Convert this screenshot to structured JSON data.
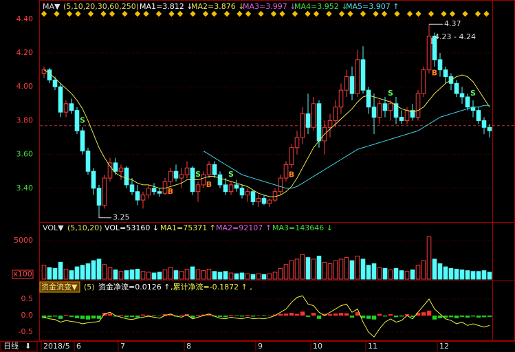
{
  "header": {
    "ma_title": "MA▼",
    "ma_periods": "(5,10,20,30,60,250)",
    "ma1": "MA1=3.812 ↓",
    "ma2": "MA2=3.876 ↓",
    "ma3": "MA3=3.997 ↓",
    "ma4": "MA4=3.952 ↓",
    "ma5": "MA5=3.907 ↑"
  },
  "chart_data": {
    "type": "candlestick",
    "categories": [
      "2018/5",
      null,
      null,
      null,
      null,
      null,
      "6",
      null,
      null,
      null,
      null,
      null,
      null,
      null,
      "7",
      null,
      null,
      null,
      null,
      null,
      null,
      null,
      null,
      null,
      null,
      null,
      "8",
      null,
      null,
      null,
      null,
      null,
      null,
      null,
      null,
      null,
      null,
      null,
      null,
      "9",
      null,
      null,
      null,
      null,
      null,
      null,
      null,
      null,
      null,
      "10",
      null,
      null,
      null,
      null,
      null,
      null,
      null,
      null,
      null,
      "11",
      null,
      null,
      null,
      null,
      null,
      null,
      null,
      null,
      null,
      null,
      null,
      null,
      "12",
      null,
      null,
      null,
      null,
      null,
      null,
      null,
      null,
      null
    ],
    "candles": [
      [
        4.08,
        4.12,
        4.05,
        4.1
      ],
      [
        4.1,
        4.11,
        4.02,
        4.04
      ],
      [
        4.04,
        4.06,
        3.98,
        4.0
      ],
      [
        4.0,
        4.02,
        3.82,
        3.85
      ],
      [
        3.85,
        3.92,
        3.82,
        3.9
      ],
      [
        3.9,
        3.93,
        3.84,
        3.86
      ],
      [
        3.86,
        3.88,
        3.72,
        3.74
      ],
      [
        3.74,
        3.76,
        3.6,
        3.62
      ],
      [
        3.62,
        3.64,
        3.48,
        3.5
      ],
      [
        3.5,
        3.52,
        3.36,
        3.4
      ],
      [
        3.4,
        3.42,
        3.25,
        3.3
      ],
      [
        3.3,
        3.48,
        3.28,
        3.46
      ],
      [
        3.46,
        3.58,
        3.44,
        3.55
      ],
      [
        3.55,
        3.58,
        3.48,
        3.5
      ],
      [
        3.5,
        3.54,
        3.45,
        3.52
      ],
      [
        3.52,
        3.53,
        3.4,
        3.42
      ],
      [
        3.42,
        3.46,
        3.36,
        3.38
      ],
      [
        3.38,
        3.42,
        3.3,
        3.33
      ],
      [
        3.33,
        3.38,
        3.28,
        3.36
      ],
      [
        3.36,
        3.42,
        3.34,
        3.4
      ],
      [
        3.4,
        3.43,
        3.36,
        3.38
      ],
      [
        3.38,
        3.4,
        3.35,
        3.37
      ],
      [
        3.37,
        3.46,
        3.36,
        3.44
      ],
      [
        3.44,
        3.52,
        3.42,
        3.5
      ],
      [
        3.5,
        3.54,
        3.44,
        3.46
      ],
      [
        3.46,
        3.52,
        3.4,
        3.48
      ],
      [
        3.48,
        3.56,
        3.46,
        3.52
      ],
      [
        3.52,
        3.53,
        3.36,
        3.38
      ],
      [
        3.38,
        3.44,
        3.32,
        3.42
      ],
      [
        3.42,
        3.5,
        3.4,
        3.48
      ],
      [
        3.48,
        3.56,
        3.46,
        3.54
      ],
      [
        3.54,
        3.56,
        3.46,
        3.48
      ],
      [
        3.48,
        3.5,
        3.4,
        3.42
      ],
      [
        3.42,
        3.46,
        3.36,
        3.38
      ],
      [
        3.38,
        3.44,
        3.36,
        3.42
      ],
      [
        3.42,
        3.45,
        3.38,
        3.4
      ],
      [
        3.4,
        3.42,
        3.34,
        3.36
      ],
      [
        3.36,
        3.4,
        3.32,
        3.38
      ],
      [
        3.38,
        3.39,
        3.3,
        3.32
      ],
      [
        3.32,
        3.36,
        3.29,
        3.34
      ],
      [
        3.34,
        3.36,
        3.3,
        3.31
      ],
      [
        3.31,
        3.34,
        3.29,
        3.33
      ],
      [
        3.33,
        3.4,
        3.32,
        3.38
      ],
      [
        3.38,
        3.48,
        3.36,
        3.46
      ],
      [
        3.46,
        3.56,
        3.44,
        3.54
      ],
      [
        3.54,
        3.66,
        3.52,
        3.64
      ],
      [
        3.64,
        3.74,
        3.6,
        3.7
      ],
      [
        3.7,
        3.88,
        3.66,
        3.84
      ],
      [
        3.84,
        3.96,
        3.72,
        3.76
      ],
      [
        3.76,
        3.94,
        3.74,
        3.9
      ],
      [
        3.9,
        3.92,
        3.64,
        3.68
      ],
      [
        3.68,
        3.8,
        3.6,
        3.76
      ],
      [
        3.76,
        3.84,
        3.7,
        3.8
      ],
      [
        3.8,
        3.92,
        3.76,
        3.88
      ],
      [
        3.88,
        4.02,
        3.84,
        3.98
      ],
      [
        3.98,
        4.1,
        3.94,
        4.06
      ],
      [
        4.06,
        4.12,
        3.92,
        3.96
      ],
      [
        3.96,
        4.22,
        3.94,
        4.16
      ],
      [
        4.16,
        4.24,
        3.96,
        3.98
      ],
      [
        3.98,
        4.0,
        3.84,
        3.88
      ],
      [
        3.88,
        3.96,
        3.72,
        3.82
      ],
      [
        3.82,
        3.92,
        3.78,
        3.9
      ],
      [
        3.9,
        3.94,
        3.82,
        3.86
      ],
      [
        3.86,
        3.92,
        3.8,
        3.9
      ],
      [
        3.9,
        3.94,
        3.78,
        3.82
      ],
      [
        3.82,
        3.86,
        3.78,
        3.8
      ],
      [
        3.8,
        3.88,
        3.78,
        3.86
      ],
      [
        3.86,
        3.9,
        3.8,
        3.82
      ],
      [
        3.82,
        3.98,
        3.8,
        3.96
      ],
      [
        3.96,
        4.12,
        3.94,
        4.1
      ],
      [
        4.1,
        4.37,
        4.08,
        4.3
      ],
      [
        4.3,
        4.32,
        4.12,
        4.16
      ],
      [
        4.16,
        4.2,
        4.06,
        4.1
      ],
      [
        4.1,
        4.12,
        4.02,
        4.06
      ],
      [
        4.06,
        4.08,
        3.98,
        4.02
      ],
      [
        4.02,
        4.04,
        3.94,
        3.96
      ],
      [
        3.96,
        4.0,
        3.9,
        3.94
      ],
      [
        3.94,
        3.96,
        3.86,
        3.88
      ],
      [
        3.88,
        3.92,
        3.82,
        3.86
      ],
      [
        3.86,
        3.88,
        3.78,
        3.8
      ],
      [
        3.8,
        3.82,
        3.72,
        3.76
      ],
      [
        3.76,
        3.78,
        3.7,
        3.74
      ]
    ],
    "up_color": "#ff3c3c",
    "down_color": "#54fcfc",
    "prev_close": 3.77,
    "ma_lines": [
      {
        "name": "MA10",
        "color": "#e8e84a",
        "values": [
          4.1,
          4.08,
          4.05,
          4.02,
          3.99,
          3.96,
          3.92,
          3.87,
          3.8,
          3.72,
          3.64,
          3.58,
          3.53,
          3.49,
          3.47,
          3.46,
          3.45,
          3.43,
          3.42,
          3.42,
          3.41,
          3.4,
          3.4,
          3.41,
          3.42,
          3.43,
          3.45,
          3.45,
          3.45,
          3.46,
          3.47,
          3.47,
          3.46,
          3.45,
          3.44,
          3.43,
          3.42,
          3.41,
          3.39,
          3.37,
          3.36,
          3.35,
          3.35,
          3.36,
          3.38,
          3.41,
          3.46,
          3.52,
          3.58,
          3.64,
          3.68,
          3.72,
          3.75,
          3.78,
          3.81,
          3.84,
          3.87,
          3.91,
          3.94,
          3.95,
          3.94,
          3.93,
          3.92,
          3.91,
          3.89,
          3.87,
          3.86,
          3.85,
          3.86,
          3.88,
          3.92,
          3.96,
          3.99,
          4.02,
          4.04,
          4.06,
          4.07,
          4.06,
          4.03,
          3.98,
          3.93,
          3.88
        ]
      },
      {
        "name": "MA60",
        "color": "#3fd6e6",
        "values": [
          null,
          null,
          null,
          null,
          null,
          null,
          null,
          null,
          null,
          null,
          null,
          null,
          null,
          null,
          null,
          null,
          null,
          null,
          null,
          null,
          null,
          null,
          null,
          null,
          null,
          null,
          null,
          null,
          null,
          3.62,
          3.6,
          3.58,
          3.56,
          3.54,
          3.52,
          3.5,
          3.48,
          3.47,
          3.46,
          3.45,
          3.44,
          3.43,
          3.42,
          3.41,
          3.4,
          3.4,
          3.41,
          3.43,
          3.45,
          3.47,
          3.49,
          3.51,
          3.53,
          3.55,
          3.57,
          3.59,
          3.61,
          3.63,
          3.64,
          3.65,
          3.66,
          3.67,
          3.68,
          3.69,
          3.7,
          3.71,
          3.72,
          3.73,
          3.74,
          3.76,
          3.78,
          3.8,
          3.82,
          3.83,
          3.84,
          3.85,
          3.86,
          3.87,
          3.88,
          3.88,
          3.89,
          3.89
        ]
      }
    ],
    "signals": [
      null,
      null,
      null,
      null,
      null,
      null,
      null,
      "S",
      null,
      null,
      null,
      null,
      null,
      null,
      null,
      null,
      null,
      null,
      null,
      null,
      null,
      null,
      null,
      "B",
      null,
      null,
      null,
      null,
      "S",
      null,
      "B",
      null,
      null,
      null,
      "S",
      null,
      null,
      null,
      null,
      null,
      null,
      null,
      null,
      null,
      null,
      "B",
      null,
      null,
      null,
      null,
      null,
      null,
      null,
      null,
      null,
      null,
      null,
      null,
      null,
      null,
      null,
      null,
      null,
      "S",
      null,
      null,
      null,
      null,
      null,
      null,
      null,
      "B",
      null,
      null,
      null,
      null,
      null,
      null,
      "S",
      null,
      null,
      null
    ],
    "high_label": "4.37",
    "low_label": "3.25",
    "range_label": "4.23 - 4.24",
    "ylim": [
      3.2,
      4.44
    ],
    "yticks": [
      {
        "value": 3.4,
        "label": "3.40"
      },
      {
        "value": 3.6,
        "label": "3.60"
      },
      {
        "value": 3.8,
        "label": "3.80"
      },
      {
        "value": 4.0,
        "label": "4.00"
      },
      {
        "value": 4.2,
        "label": "4.20"
      },
      {
        "value": 4.4,
        "label": "4.40"
      }
    ],
    "period_label": "日线"
  },
  "volume": {
    "title": "VOL▼",
    "periods": "(5,10,20)",
    "vol": "VOL=53160 ↓",
    "ma1": "MA1=75371 ↑",
    "ma2": "MA2=92107 ↑",
    "ma3": "MA3=143646 ↓",
    "unit": "x100",
    "values": [
      1800,
      1500,
      1400,
      2200,
      1300,
      1100,
      1600,
      1800,
      2000,
      2400,
      2600,
      1900,
      1500,
      1200,
      1000,
      1100,
      1200,
      1300,
      1000,
      900,
      800,
      900,
      1200,
      1500,
      1100,
      1000,
      1300,
      1600,
      1200,
      1100,
      1300,
      1000,
      900,
      1000,
      800,
      700,
      800,
      700,
      600,
      700,
      600,
      700,
      900,
      1400,
      1900,
      2400,
      2600,
      3200,
      2800,
      2600,
      3000,
      2200,
      2000,
      2400,
      2600,
      2800,
      2400,
      3000,
      2600,
      1800,
      2000,
      1500,
      1400,
      1200,
      1400,
      1100,
      1000,
      1200,
      1800,
      2400,
      5500,
      2600,
      2000,
      1600,
      1400,
      1300,
      1200,
      1100,
      1000,
      1000,
      1100,
      900
    ],
    "ylim": [
      0,
      5900
    ],
    "yticks": [
      5000
    ]
  },
  "flow": {
    "title": "资金流变▼",
    "periods": "(5)",
    "net": "资金净流=0.0126 ↑",
    "cum": ",累计净流=-0.1872 ↑ ,",
    "values": [
      -0.08,
      -0.05,
      -0.03,
      -0.1,
      0.02,
      -0.04,
      -0.08,
      -0.1,
      -0.12,
      -0.09,
      -0.1,
      0.08,
      0.06,
      -0.03,
      0.02,
      -0.05,
      -0.04,
      -0.06,
      0.03,
      0.02,
      -0.02,
      -0.01,
      0.04,
      0.05,
      -0.03,
      0.02,
      0.04,
      -0.07,
      0.02,
      0.03,
      0.05,
      -0.03,
      -0.04,
      -0.05,
      0.02,
      -0.02,
      -0.03,
      0.02,
      -0.03,
      0.01,
      -0.02,
      0.01,
      0.03,
      0.05,
      0.06,
      0.08,
      0.05,
      0.12,
      -0.04,
      0.08,
      -0.1,
      0.05,
      0.04,
      0.06,
      0.08,
      0.07,
      -0.06,
      0.1,
      -0.08,
      -0.1,
      -0.12,
      0.05,
      -0.03,
      0.04,
      -0.05,
      -0.03,
      0.04,
      -0.04,
      0.08,
      0.1,
      0.15,
      -0.12,
      -0.08,
      -0.06,
      -0.05,
      -0.08,
      -0.04,
      -0.06,
      -0.03,
      -0.06,
      -0.05,
      -0.04
    ],
    "line": [
      -0.05,
      -0.1,
      -0.12,
      -0.2,
      -0.15,
      -0.18,
      -0.2,
      -0.25,
      -0.22,
      -0.2,
      -0.18,
      0.05,
      0.1,
      0.0,
      -0.05,
      -0.1,
      -0.12,
      -0.08,
      -0.05,
      -0.02,
      -0.05,
      -0.08,
      0.0,
      0.05,
      -0.02,
      -0.05,
      0.02,
      -0.1,
      -0.05,
      0.0,
      0.05,
      -0.02,
      -0.08,
      -0.1,
      -0.05,
      -0.08,
      -0.1,
      -0.05,
      -0.1,
      -0.08,
      -0.1,
      -0.06,
      0.0,
      0.1,
      0.2,
      0.4,
      0.55,
      0.6,
      0.35,
      0.3,
      0.1,
      0.0,
      0.1,
      0.2,
      0.3,
      0.35,
      0.1,
      0.2,
      -0.2,
      -0.5,
      -0.65,
      -0.4,
      -0.2,
      -0.1,
      -0.2,
      -0.15,
      0.0,
      -0.1,
      0.1,
      0.3,
      0.5,
      0.2,
      0.05,
      -0.1,
      -0.15,
      -0.25,
      -0.2,
      -0.3,
      -0.25,
      -0.3,
      -0.35,
      -0.3
    ],
    "pos_color": "#ff3030",
    "neg_color": "#20d020",
    "line_color": "#f0f040",
    "ylim": [
      -0.73,
      0.98
    ],
    "yticks": [
      0.5,
      {
        "value": 0,
        "label": "0.0"
      },
      -0.5
    ]
  }
}
